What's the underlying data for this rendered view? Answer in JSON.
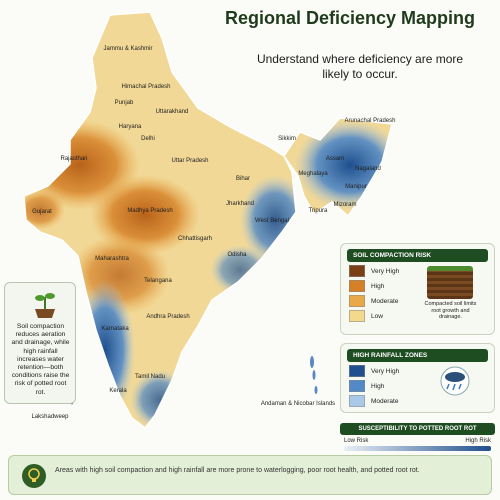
{
  "header": {
    "title": "Regional Deficiency Mapping",
    "subtitle": "Understand where deficiency are more likely to occur."
  },
  "map": {
    "regions": [
      "Jammu & Kashmir",
      "Himachal Pradesh",
      "Punjab",
      "Uttarakhand",
      "Haryana",
      "Delhi",
      "Rajasthan",
      "Uttar Pradesh",
      "Bihar",
      "Sikkim",
      "Arunachal Pradesh",
      "Assam",
      "Meghalaya",
      "Nagaland",
      "Manipur",
      "Tripura",
      "Mizoram",
      "Gujarat",
      "Madhya Pradesh",
      "Jharkhand",
      "West Bengal",
      "Chhattisgarh",
      "Odisha",
      "Maharashtra",
      "Telangana",
      "Andhra Pradesh",
      "Karnataka",
      "Tamil Nadu",
      "Kerala",
      "Lakshadweep",
      "Andaman & Nicobar Islands"
    ]
  },
  "side_note": {
    "text": "Soil compaction reduces aeration and drainage, while high rainfall increases water retention—both conditions raise the risk of potted root rot."
  },
  "soil_legend": {
    "title": "SOIL COMPACTION RISK",
    "items": [
      {
        "label": "Very High",
        "color": "#7a3f14"
      },
      {
        "label": "High",
        "color": "#d57f27"
      },
      {
        "label": "Moderate",
        "color": "#e9a949"
      },
      {
        "label": "Low",
        "color": "#f3d98c"
      }
    ],
    "note": "Compacted soil limits root growth and drainage."
  },
  "rain_legend": {
    "title": "HIGH RAINFALL ZONES",
    "items": [
      {
        "label": "Very High",
        "color": "#1f4f8e"
      },
      {
        "label": "High",
        "color": "#5289c6"
      },
      {
        "label": "Moderate",
        "color": "#aac9e8"
      }
    ]
  },
  "risk_scale": {
    "title": "SUSCEPTIBILITY TO POTTED ROOT ROT",
    "low": "Low Risk",
    "high": "High Risk"
  },
  "footer": {
    "text": "Areas with high soil compaction and high rainfall are more prone to waterlogging, poor root health, and potted root rot."
  }
}
